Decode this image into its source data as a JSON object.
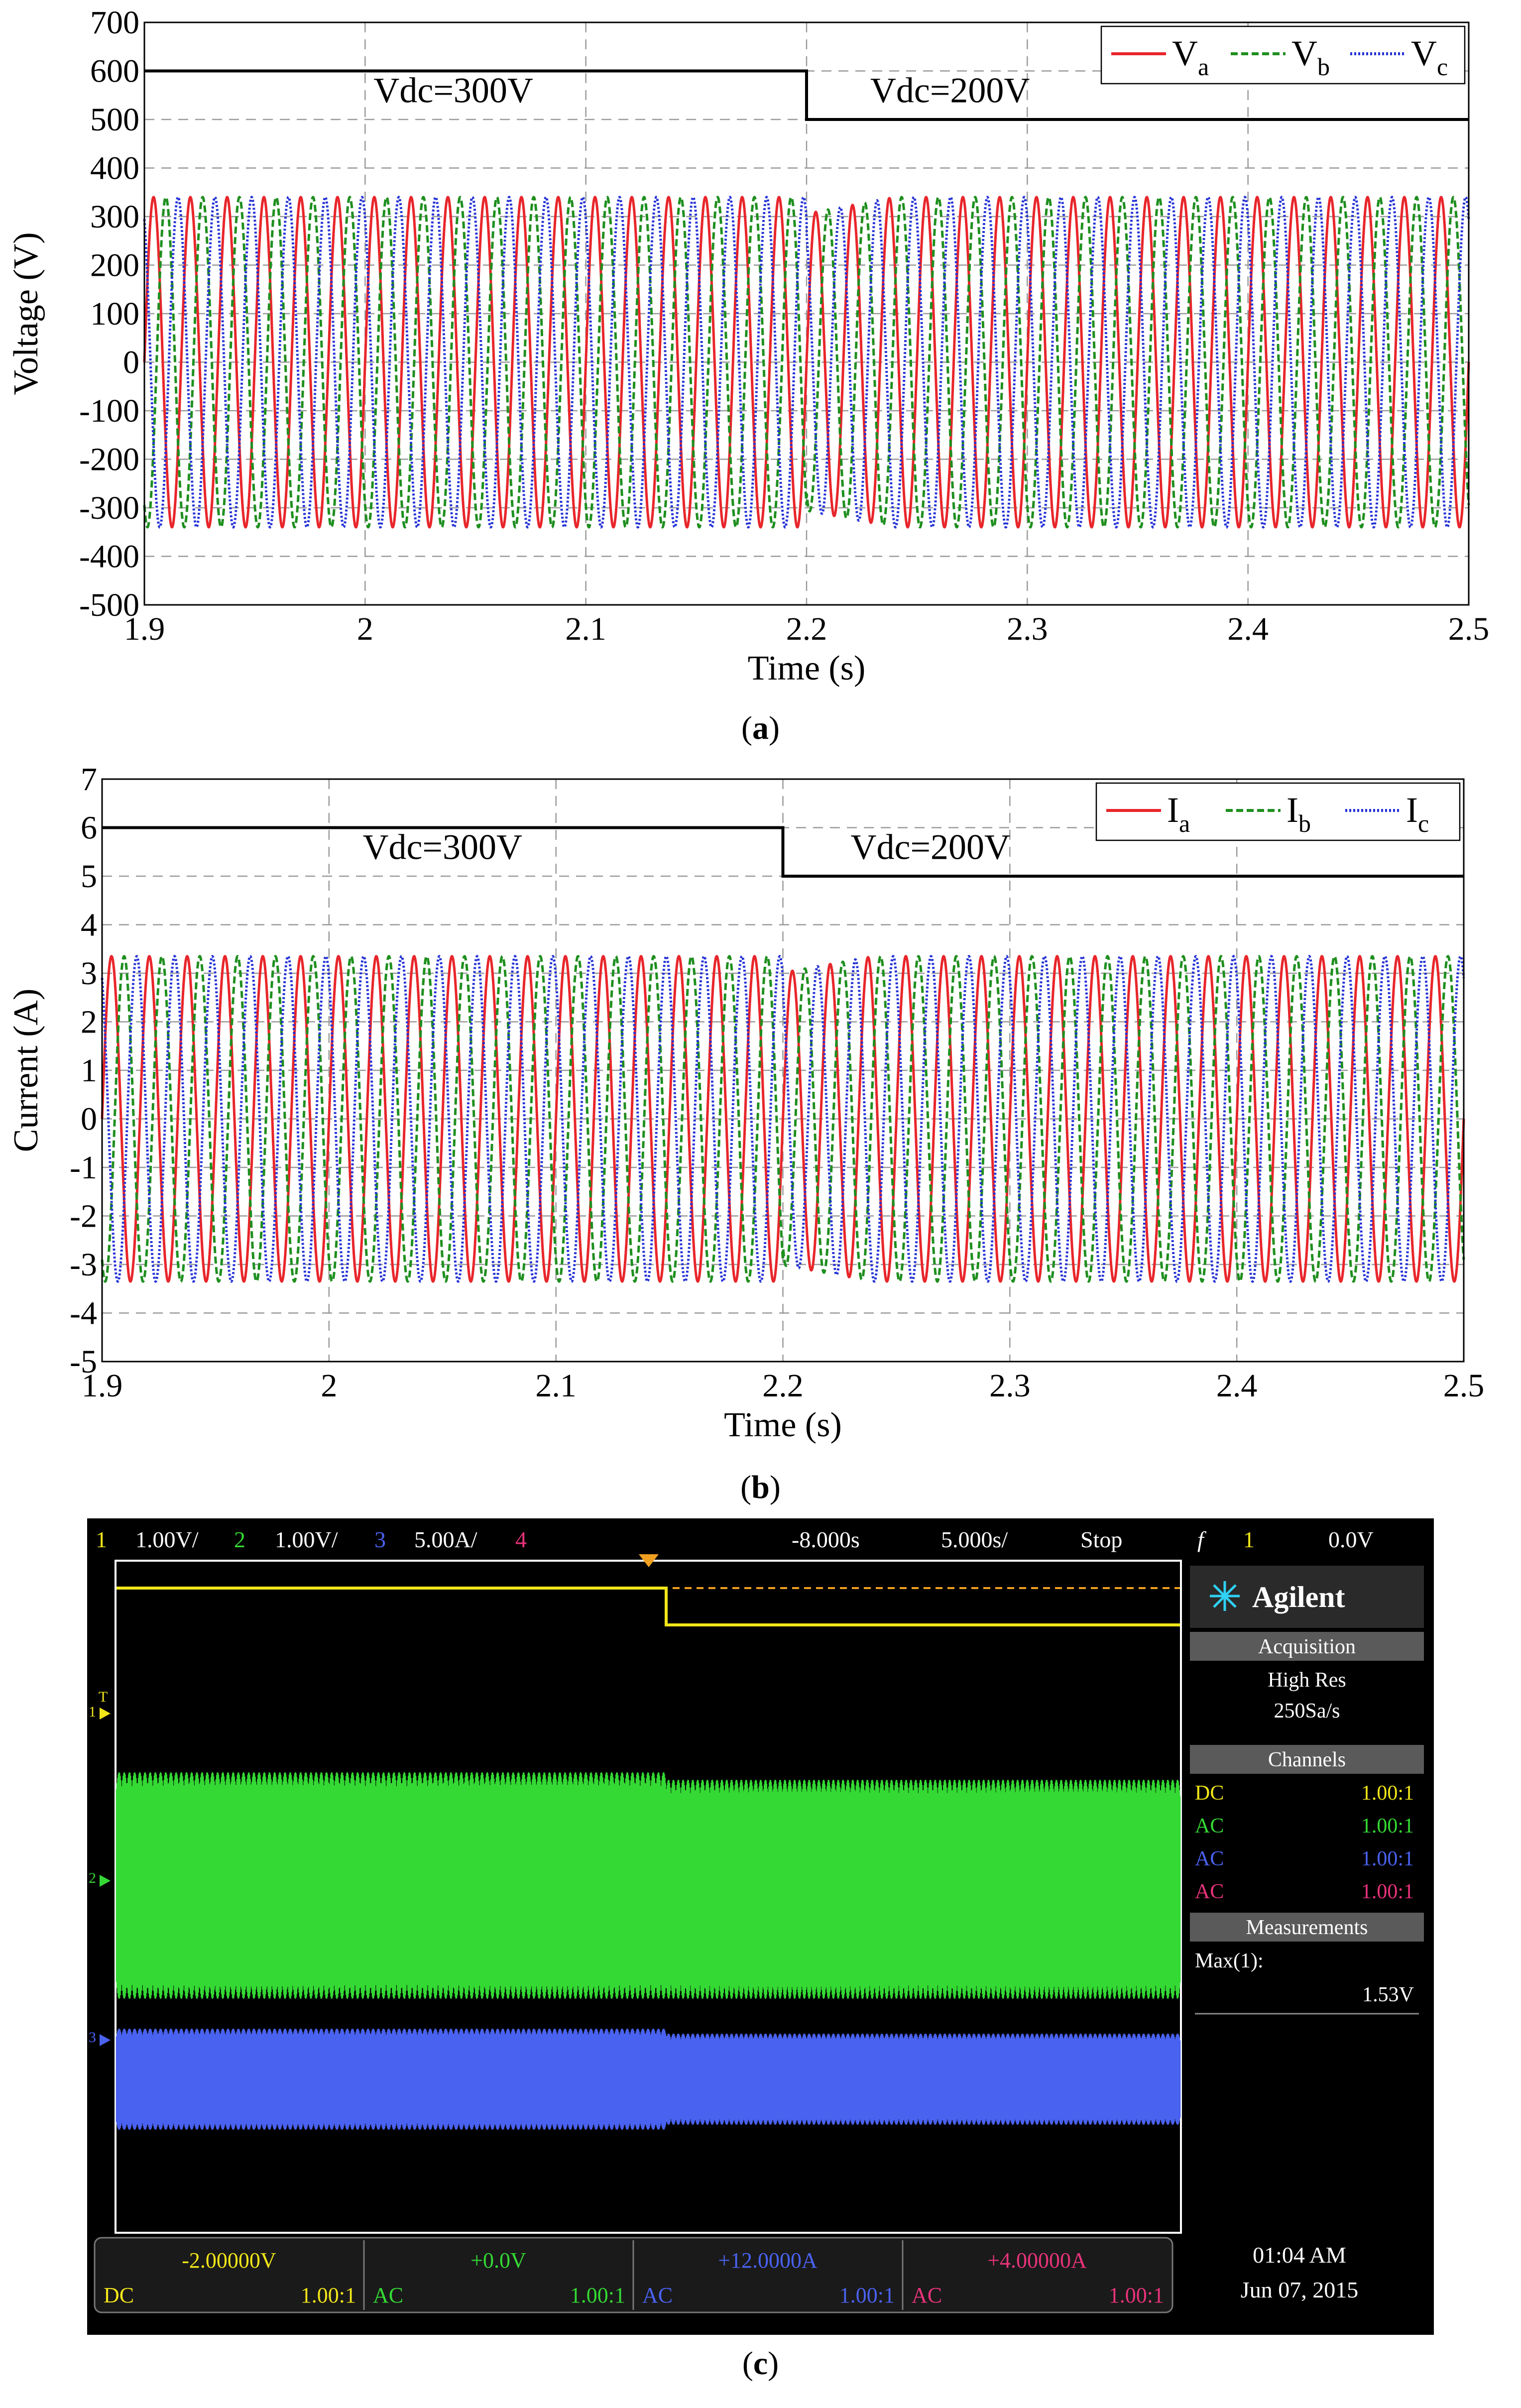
{
  "chart_data": [
    {
      "type": "line",
      "panel": "a",
      "caption_letter": "a",
      "xlabel": "Time (s)",
      "ylabel": "Voltage (V)",
      "xlim": [
        1.9,
        2.5
      ],
      "ylim": [
        -500,
        700
      ],
      "xticks": [
        "1.9",
        "2",
        "2.1",
        "2.2",
        "2.3",
        "2.4",
        "2.5"
      ],
      "yticks": [
        "-500",
        "-400",
        "-300",
        "-200",
        "-100",
        "0",
        "100",
        "200",
        "300",
        "400",
        "500",
        "600",
        "700"
      ],
      "grid": true,
      "legend_position": "top-right",
      "series": [
        {
          "name": "V",
          "sub": "a",
          "color": "#e8262b",
          "style": "solid",
          "amplitude": 340,
          "phase_deg": 0,
          "frequency_hz": 60
        },
        {
          "name": "V",
          "sub": "b",
          "color": "#1f8f1f",
          "style": "dashed",
          "amplitude": 340,
          "phase_deg": -120,
          "frequency_hz": 60
        },
        {
          "name": "V",
          "sub": "c",
          "color": "#2432d6",
          "style": "dotted",
          "amplitude": 340,
          "phase_deg": 120,
          "frequency_hz": 60
        }
      ],
      "step": {
        "x": [
          1.9,
          2.2,
          2.2,
          2.5
        ],
        "y": [
          600,
          600,
          500,
          500
        ],
        "color": "#000000"
      },
      "annotations": [
        {
          "text": "Vdc=300V",
          "x": 2.04,
          "y": 560
        },
        {
          "text": "Vdc=200V",
          "x": 2.265,
          "y": 560
        }
      ]
    },
    {
      "type": "line",
      "panel": "b",
      "caption_letter": "b",
      "xlabel": "Time (s)",
      "ylabel": "Current (A)",
      "xlim": [
        1.9,
        2.5
      ],
      "ylim": [
        -5,
        7
      ],
      "xticks": [
        "1.9",
        "2",
        "2.1",
        "2.2",
        "2.3",
        "2.4",
        "2.5"
      ],
      "yticks": [
        "-5",
        "-4",
        "-3",
        "-2",
        "-1",
        "0",
        "1",
        "2",
        "3",
        "4",
        "5",
        "6",
        "7"
      ],
      "grid": true,
      "legend_position": "top-right",
      "series": [
        {
          "name": "I",
          "sub": "a",
          "color": "#e8262b",
          "style": "solid",
          "amplitude": 3.35,
          "phase_deg": 0,
          "frequency_hz": 60
        },
        {
          "name": "I",
          "sub": "b",
          "color": "#1f8f1f",
          "style": "dashed",
          "amplitude": 3.35,
          "phase_deg": -120,
          "frequency_hz": 60
        },
        {
          "name": "I",
          "sub": "c",
          "color": "#2432d6",
          "style": "dotted",
          "amplitude": 3.35,
          "phase_deg": 120,
          "frequency_hz": 60
        }
      ],
      "step": {
        "x": [
          1.9,
          2.2,
          2.2,
          2.5
        ],
        "y": [
          6,
          6,
          5,
          5
        ],
        "color": "#000000"
      },
      "annotations": [
        {
          "text": "Vdc=300V",
          "x": 2.05,
          "y": 5.6
        },
        {
          "text": "Vdc=200V",
          "x": 2.265,
          "y": 5.6
        }
      ]
    }
  ],
  "scope": {
    "caption_letter": "c",
    "topbar": {
      "ch1_num": "1",
      "ch1_scale": "1.00V/",
      "ch2_num": "2",
      "ch2_scale": "1.00V/",
      "ch3_num": "3",
      "ch3_scale": "5.00A/",
      "ch4_num": "4",
      "delay": "-8.000s",
      "timebase": "5.000s/",
      "run_state": "Stop",
      "trig_symbol": "f",
      "trig_channel": "1",
      "trig_level": "0.0V"
    },
    "brand": "Agilent",
    "acquisition": {
      "title": "Acquisition",
      "mode": "High Res",
      "rate": "250Sa/s"
    },
    "channels": {
      "title": "Channels",
      "rows": [
        {
          "coupling": "DC",
          "ratio": "1.00:1",
          "color": "#f2e61a"
        },
        {
          "coupling": "AC",
          "ratio": "1.00:1",
          "color": "#34d934"
        },
        {
          "coupling": "AC",
          "ratio": "1.00:1",
          "color": "#4a62f0"
        },
        {
          "coupling": "AC",
          "ratio": "1.00:1",
          "color": "#e8337a"
        }
      ]
    },
    "measurements": {
      "title": "Measurements",
      "label": "Max(1):",
      "value": "1.53V"
    },
    "markers": {
      "ch1": "1",
      "trig": "T",
      "ch2": "2",
      "ch3": "3"
    },
    "offsets": [
      {
        "offset": "-2.00000V",
        "coupling": "DC",
        "ratio": "1.00:1",
        "color": "#f2e61a"
      },
      {
        "offset": "+0.0V",
        "coupling": "AC",
        "ratio": "1.00:1",
        "color": "#34d934"
      },
      {
        "offset": "+12.0000A",
        "coupling": "AC",
        "ratio": "1.00:1",
        "color": "#4a62f0"
      },
      {
        "offset": "+4.00000A",
        "coupling": "AC",
        "ratio": "1.00:1",
        "color": "#e8337a"
      }
    ],
    "clock": {
      "time": "01:04 AM",
      "date": "Jun 07, 2015"
    },
    "colors": {
      "ch1": "#f2e61a",
      "ch2": "#34d934",
      "ch3": "#4a62f0",
      "ch4": "#e8337a",
      "trigger": "#f0a020",
      "bg": "#000000"
    }
  }
}
